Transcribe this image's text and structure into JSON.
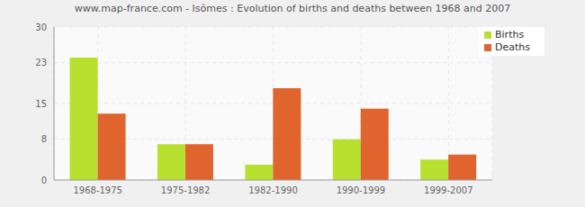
{
  "chart_data": {
    "type": "bar",
    "title": "www.map-france.com - Isômes : Evolution of births and deaths between 1968 and 2007",
    "categories": [
      "1968-1975",
      "1975-1982",
      "1982-1990",
      "1990-1999",
      "1999-2007"
    ],
    "series": [
      {
        "name": "Births",
        "color": "#b8e02e",
        "values": [
          24,
          7,
          3,
          8,
          4
        ]
      },
      {
        "name": "Deaths",
        "color": "#e0642e",
        "values": [
          13,
          7,
          18,
          14,
          5
        ]
      }
    ],
    "ylim": [
      0,
      30
    ],
    "yticks": [
      0,
      8,
      15,
      23,
      30
    ],
    "grid": true,
    "legend": "top-right"
  }
}
